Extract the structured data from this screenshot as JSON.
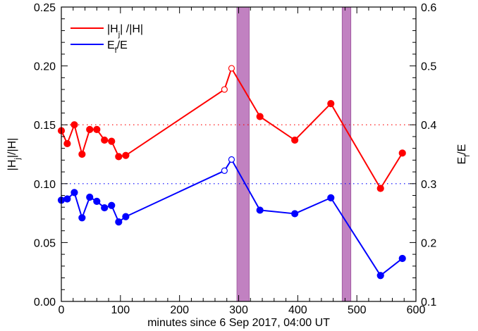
{
  "chart_data": {
    "type": "line",
    "xlabel": "minutes since 6 Sep 2017, 04:00 UT",
    "ylabel_left": "|H_j|/|H|",
    "ylabel_right": "E_f/E",
    "xlim": [
      0,
      600
    ],
    "ylim_left": [
      0.0,
      0.25
    ],
    "ylim_right": [
      0.1,
      0.6
    ],
    "x_ticks": [
      "0",
      "100",
      "200",
      "300",
      "400",
      "500",
      "600"
    ],
    "y_left_ticks": [
      "0.00",
      "0.05",
      "0.10",
      "0.15",
      "0.20",
      "0.25"
    ],
    "y_right_ticks": [
      "0.1",
      "0.2",
      "0.3",
      "0.4",
      "0.5",
      "0.6"
    ],
    "legend_position": "top-left",
    "shaded_intervals": [
      {
        "x0": 297,
        "x1": 318,
        "color": "#a64ca6"
      },
      {
        "x0": 475,
        "x1": 490,
        "color": "#a64ca6"
      }
    ],
    "series": [
      {
        "name": "|H_j|/|H|",
        "axis": "left",
        "color": "#ff0000",
        "reference_line": 0.15,
        "x": [
          0,
          10,
          22,
          35,
          48,
          60,
          73,
          85,
          97,
          109,
          276,
          288,
          336,
          395,
          456,
          540,
          577
        ],
        "values": [
          0.145,
          0.134,
          0.15,
          0.125,
          0.146,
          0.146,
          0.137,
          0.136,
          0.123,
          0.124,
          0.18,
          0.198,
          0.157,
          0.137,
          0.168,
          0.096,
          0.126
        ],
        "hollow_points": [
          10,
          11
        ]
      },
      {
        "name": "E_f/E",
        "axis": "right",
        "color": "#0000ff",
        "reference_line": 0.3,
        "x": [
          0,
          10,
          22,
          35,
          48,
          60,
          73,
          85,
          97,
          109,
          276,
          288,
          336,
          395,
          456,
          540,
          577
        ],
        "values": [
          0.272,
          0.274,
          0.285,
          0.242,
          0.277,
          0.27,
          0.259,
          0.263,
          0.235,
          0.244,
          0.322,
          0.341,
          0.255,
          0.249,
          0.276,
          0.144,
          0.173
        ],
        "hollow_points": [
          10,
          11
        ]
      }
    ]
  }
}
